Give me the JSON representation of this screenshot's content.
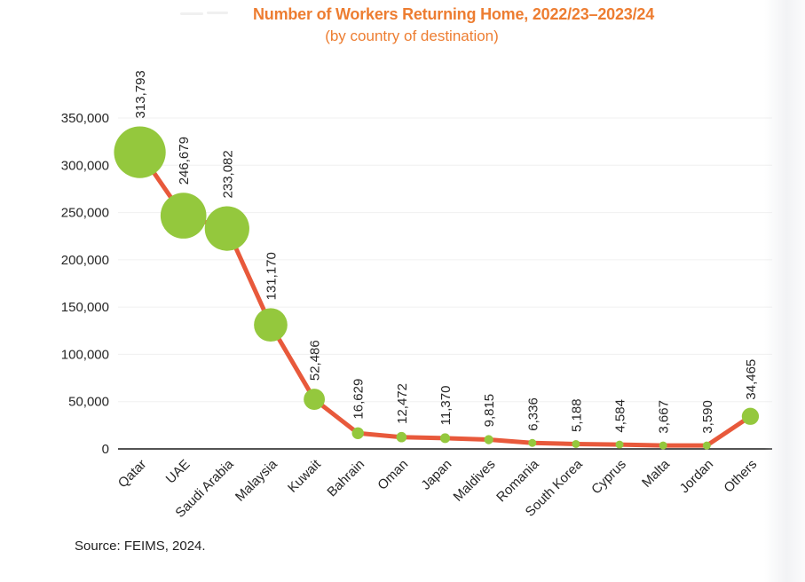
{
  "page": {
    "source": "Source: FEIMS, 2024."
  },
  "chart_data": {
    "type": "line",
    "marker_style": "bubble-sized-by-value",
    "title": "Number of Workers Returning Home, 2022/23–2023/24",
    "subtitle": "(by country of destination)",
    "categories": [
      "Qatar",
      "UAE",
      "Saudi Arabia",
      "Malaysia",
      "Kuwait",
      "Bahrain",
      "Oman",
      "Japan",
      "Maldives",
      "Romania",
      "South Korea",
      "Cyprus",
      "Malta",
      "Jordan",
      "Others"
    ],
    "values": [
      313793,
      246679,
      233082,
      131170,
      52486,
      16629,
      12472,
      11370,
      9815,
      6336,
      5188,
      4584,
      3667,
      3590,
      34465
    ],
    "data_labels_shown": true,
    "xlabel": "",
    "ylabel": "",
    "ylim": [
      0,
      350000
    ],
    "ytick_step": 50000,
    "grid": true,
    "legend_position": "none",
    "colors": {
      "title": "#ED7D31",
      "line": "#E8593B",
      "marker": "#94C83D",
      "axis_text": "#262626",
      "gridline": "#F0F0F0",
      "axis_line": "#1A1A1A"
    }
  }
}
